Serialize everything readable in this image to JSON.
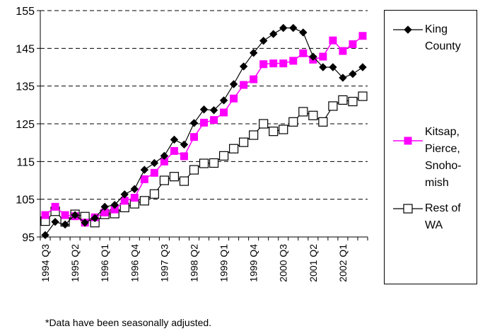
{
  "chart_data": {
    "type": "line",
    "ylim": [
      95,
      155
    ],
    "yticks": [
      95,
      105,
      115,
      125,
      135,
      145,
      155
    ],
    "grid": "horizontal dashed",
    "legend_position": "right",
    "x_tick_labels": [
      "1994 Q3",
      "1995 Q2",
      "1996 Q1",
      "1996 Q4",
      "1997 Q3",
      "1998 Q2",
      "1999 Q1",
      "1999 Q4",
      "2000 Q3",
      "2001 Q2",
      "2002 Q1"
    ],
    "x": [
      "1994 Q3",
      "1994 Q4",
      "1995 Q1",
      "1995 Q2",
      "1995 Q3",
      "1995 Q4",
      "1996 Q1",
      "1996 Q2",
      "1996 Q3",
      "1996 Q4",
      "1997 Q1",
      "1997 Q2",
      "1997 Q3",
      "1997 Q4",
      "1998 Q1",
      "1998 Q2",
      "1998 Q3",
      "1998 Q4",
      "1999 Q1",
      "1999 Q2",
      "1999 Q3",
      "1999 Q4",
      "2000 Q1",
      "2000 Q2",
      "2000 Q3",
      "2000 Q4",
      "2001 Q1",
      "2001 Q2",
      "2001 Q3",
      "2001 Q4",
      "2002 Q1",
      "2002 Q2",
      "2002 Q3"
    ],
    "series": [
      {
        "name": "King\nCounty",
        "color": "#000000",
        "marker": "diamond",
        "values": [
          95.5,
          99,
          98.3,
          100.8,
          98.8,
          100,
          103,
          103.5,
          106.3,
          107.7,
          112.8,
          114.6,
          116.5,
          120.8,
          119.5,
          125.2,
          128.8,
          128.6,
          131.2,
          135.5,
          140.2,
          143.8,
          147,
          148.8,
          150.4,
          150.4,
          149.2,
          142.8,
          140,
          140,
          137.2,
          138.2,
          140
        ]
      },
      {
        "name": "Kitsap,\nPierce,\nSnoho-\nmish",
        "color": "#ff00ff",
        "marker": "square",
        "values": [
          100.8,
          103,
          100.8,
          100.5,
          98.8,
          100.2,
          101.5,
          102.3,
          104.6,
          105.4,
          110.3,
          112,
          115,
          117.8,
          116.4,
          121.5,
          125.3,
          126,
          128,
          131.7,
          135.3,
          136.8,
          140.8,
          141,
          141,
          141.7,
          143.7,
          142,
          142.8,
          147.1,
          144.3,
          146.1,
          148.3
        ]
      },
      {
        "name": "Rest of\nWA",
        "color": "#000000",
        "marker": "open-square",
        "values": [
          99.2,
          101.8,
          99,
          101,
          100.4,
          98.8,
          101,
          101.2,
          102.8,
          103.8,
          104.6,
          106.4,
          110,
          111,
          109.8,
          112.8,
          114.5,
          114.6,
          116.5,
          118.4,
          120.1,
          122,
          125,
          123,
          123.5,
          125.5,
          128.2,
          127.2,
          125.5,
          129.7,
          131.3,
          130.9,
          132.3
        ]
      }
    ]
  },
  "footnote": "*Data have been seasonally adjusted."
}
